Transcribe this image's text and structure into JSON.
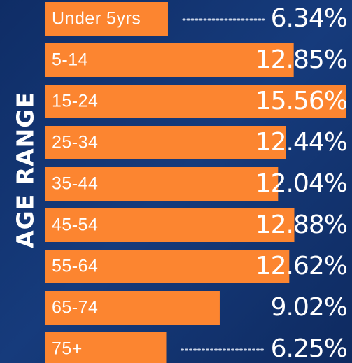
{
  "chart_data": {
    "type": "bar",
    "orientation": "horizontal",
    "y_label": "AGE RANGE",
    "categories": [
      "Under 5yrs",
      "5-14",
      "15-24",
      "25-34",
      "35-44",
      "45-54",
      "55-64",
      "65-74",
      "75+"
    ],
    "values": [
      6.34,
      12.85,
      15.56,
      12.44,
      12.04,
      12.88,
      12.62,
      9.02,
      6.25
    ],
    "value_labels": [
      "6.34%",
      "12.85%",
      "15.56%",
      "12.44%",
      "12.04%",
      "12.88%",
      "12.62%",
      "9.02%",
      "6.25%"
    ],
    "color": "#fc8530"
  }
}
